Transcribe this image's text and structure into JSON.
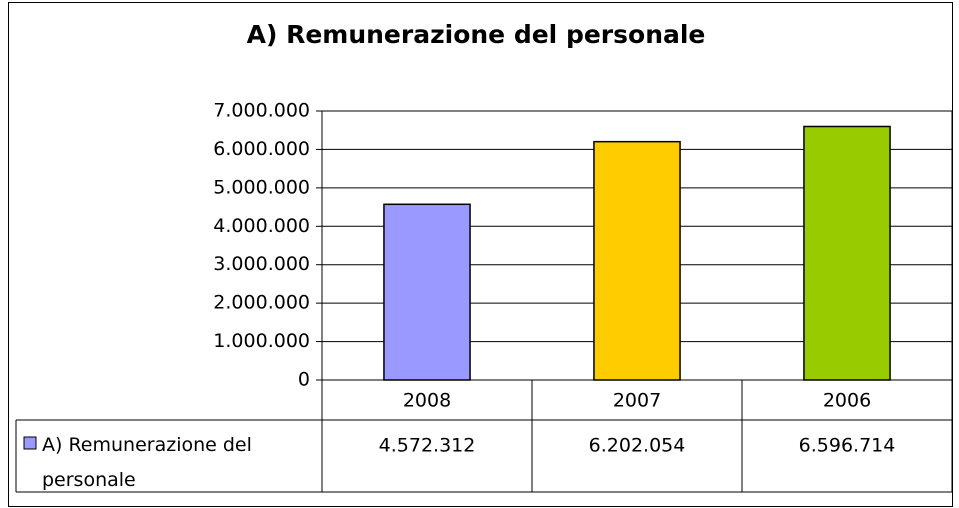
{
  "chart_data": {
    "type": "bar",
    "title": "A) Remunerazione del personale",
    "categories": [
      "2008",
      "2007",
      "2006"
    ],
    "series": [
      {
        "name": "A) Remunerazione del personale",
        "color": "#9999ff",
        "colors": [
          "#9999ff",
          "#ffcc00",
          "#99cc00"
        ],
        "values": [
          4572312,
          6202054,
          6596714
        ],
        "value_labels": [
          "4.572.312",
          "6.202.054",
          "6.596.714"
        ]
      }
    ],
    "ylim": [
      0,
      7000000
    ],
    "yticks": [
      0,
      {
        "value": 1000000,
        "label": "1.000.000"
      },
      {
        "value": 2000000,
        "label": "2.000.000"
      },
      {
        "value": 3000000,
        "label": "3.000.000"
      },
      {
        "value": 4000000,
        "label": "4.000.000"
      },
      {
        "value": 5000000,
        "label": "5.000.000"
      },
      {
        "value": 6000000,
        "label": "6.000.000"
      },
      {
        "value": 7000000,
        "label": "7.000.000"
      }
    ],
    "grid": true,
    "data_table": true
  }
}
